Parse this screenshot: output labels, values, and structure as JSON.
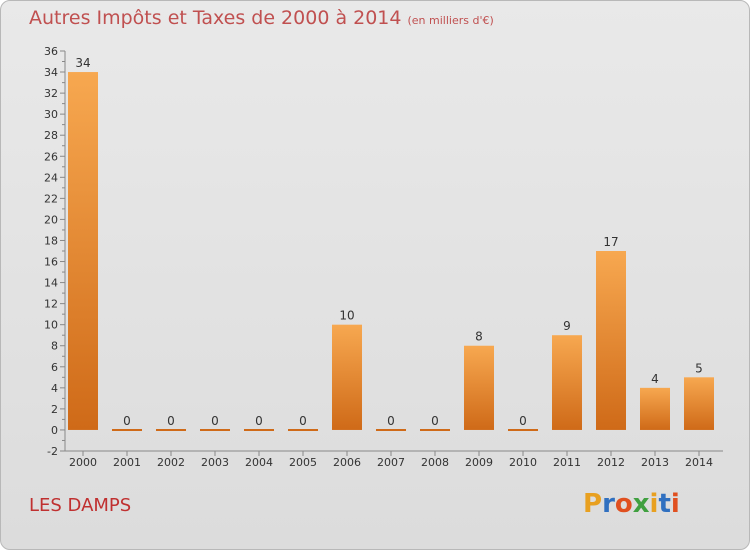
{
  "title": "Autres Impôts et Taxes de 2000 à 2014",
  "subtitle": "(en milliers d'€)",
  "commune": "LES DAMPS",
  "logo_text": "Proxiti",
  "logo_colors": [
    "#e8a020",
    "#3070c0",
    "#e05020",
    "#40a040",
    "#e8a020",
    "#3070c0",
    "#e05020"
  ],
  "colors": {
    "bar_light": "#f7a850",
    "bar_dark": "#cf6a18",
    "title": "#c05050",
    "commune": "#c03030"
  },
  "chart_data": {
    "type": "bar",
    "categories": [
      "2000",
      "2001",
      "2002",
      "2003",
      "2004",
      "2005",
      "2006",
      "2007",
      "2008",
      "2009",
      "2010",
      "2011",
      "2012",
      "2013",
      "2014"
    ],
    "values": [
      34,
      0,
      0,
      0,
      0,
      0,
      10,
      0,
      0,
      8,
      0,
      9,
      17,
      4,
      5
    ],
    "ylim": [
      -2,
      36
    ],
    "yticks": [
      -2,
      0,
      2,
      4,
      6,
      8,
      10,
      12,
      14,
      16,
      18,
      20,
      22,
      24,
      26,
      28,
      30,
      32,
      34,
      36
    ],
    "grid": false
  }
}
